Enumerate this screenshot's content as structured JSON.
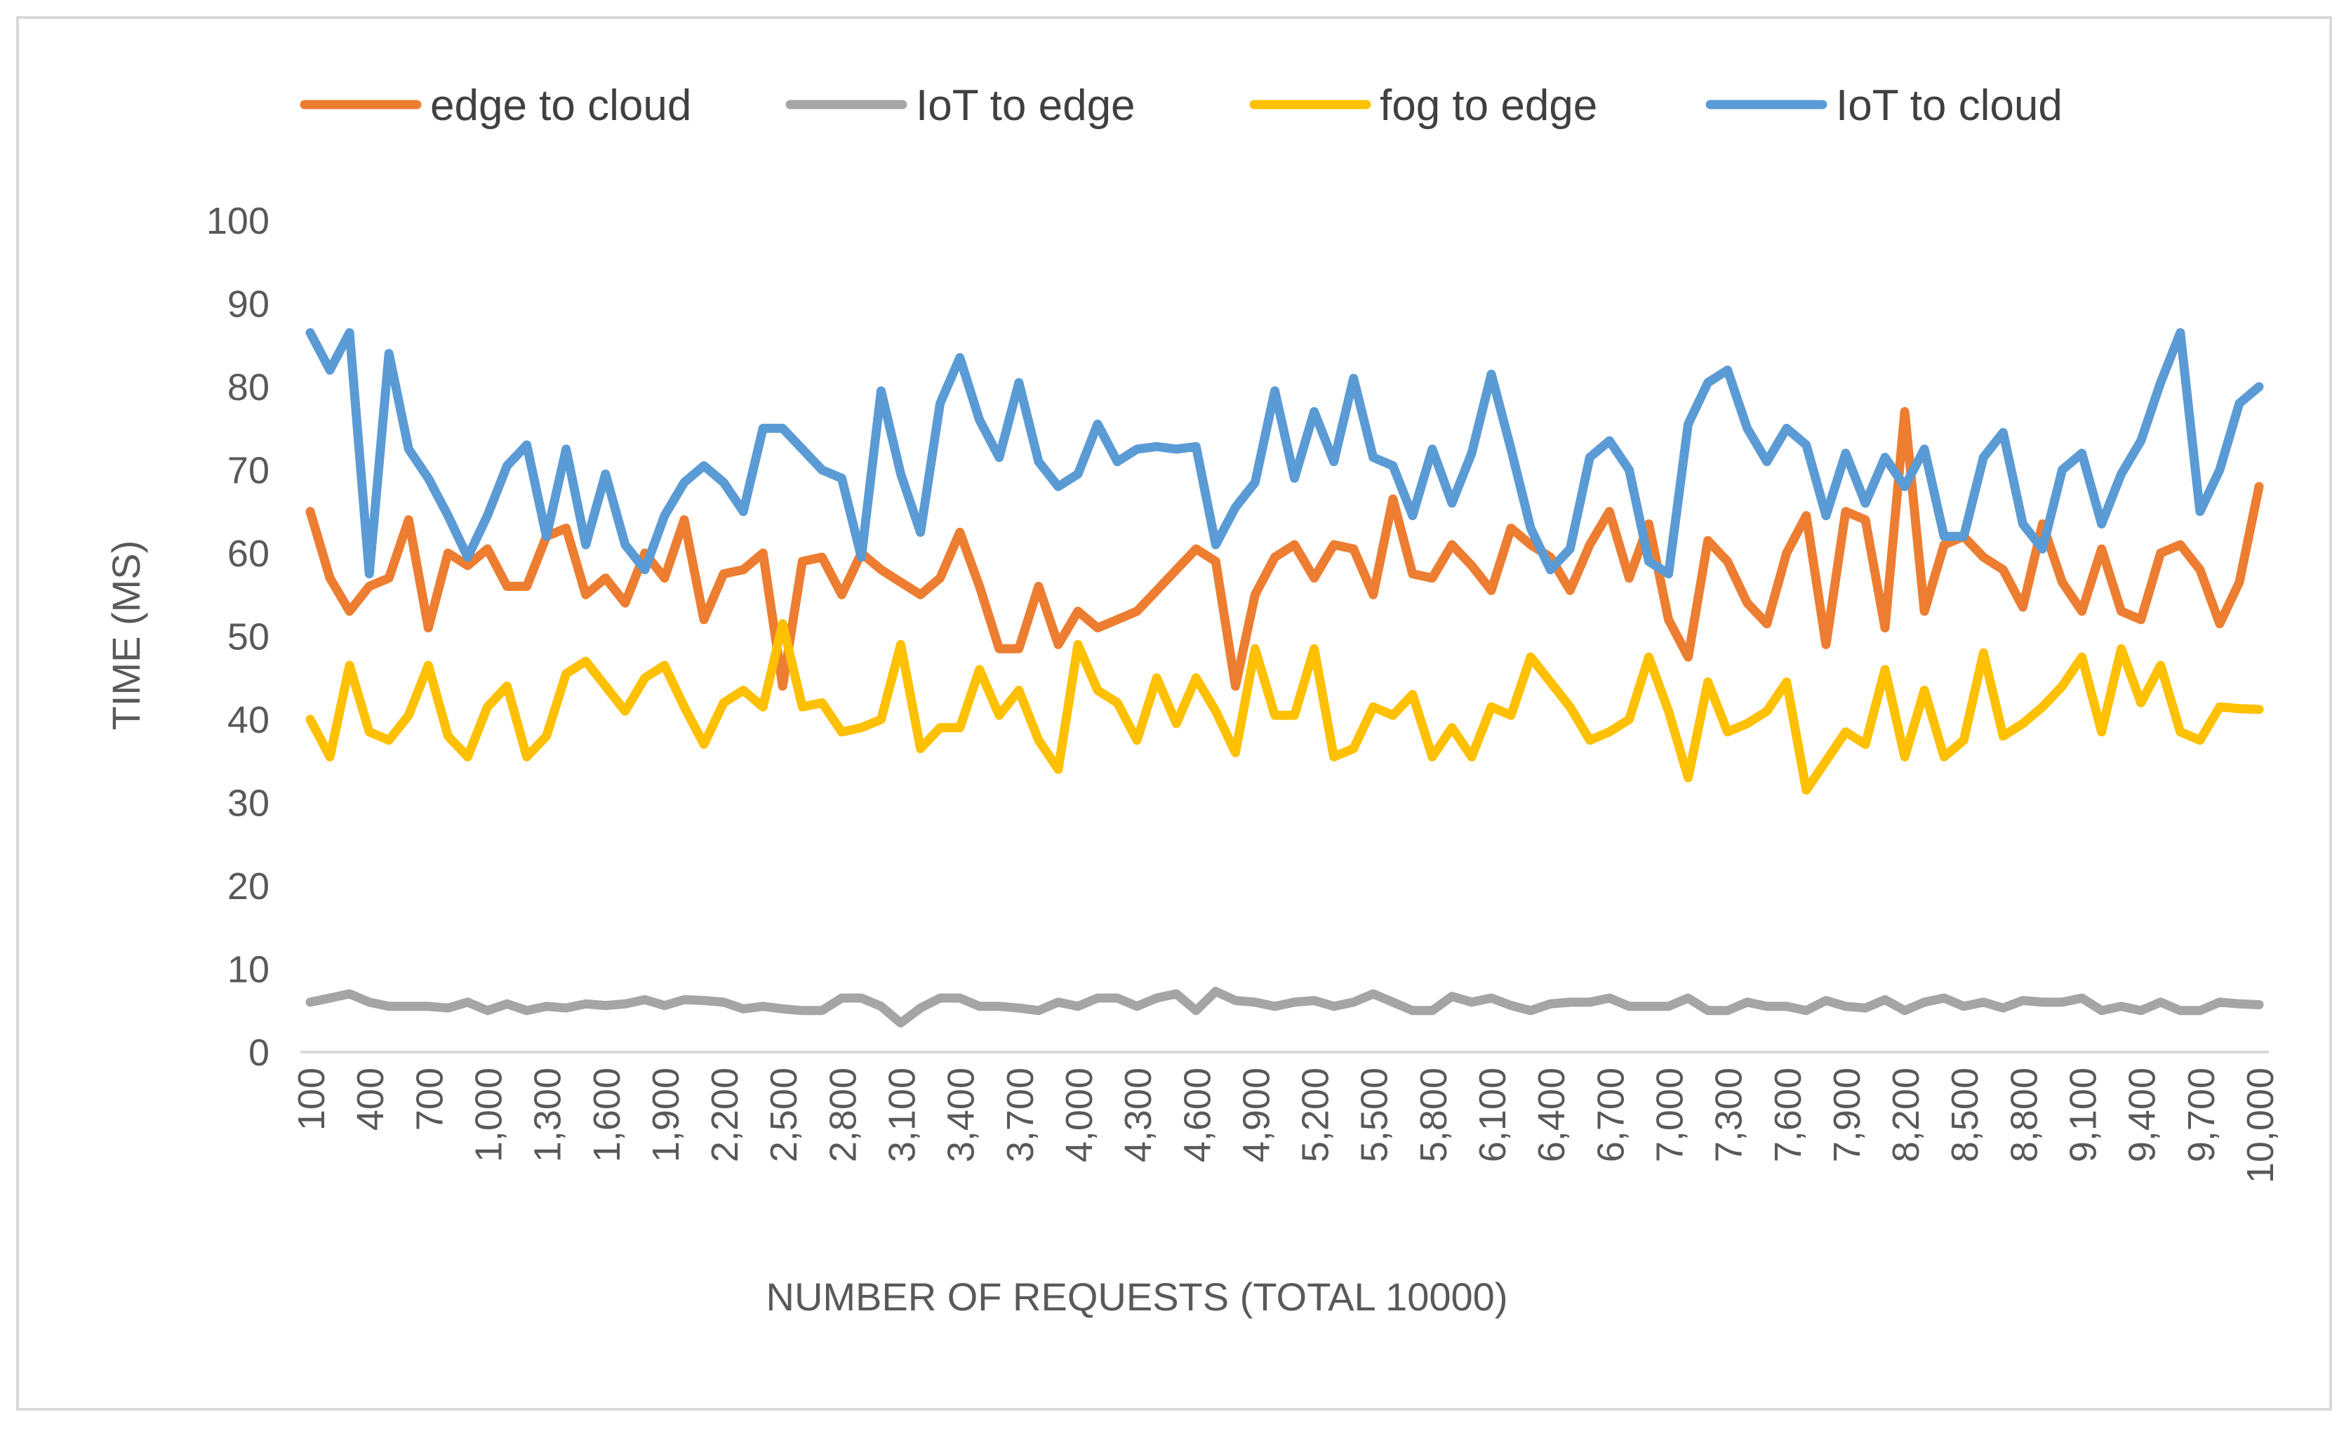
{
  "chart_data": {
    "type": "line",
    "title": "",
    "xlabel": "NUMBER OF REQUESTS (TOTAL 10000)",
    "ylabel": "TIME (MS)",
    "ylim": [
      0,
      100
    ],
    "yticks": [
      0,
      10,
      20,
      30,
      40,
      50,
      60,
      70,
      80,
      90,
      100
    ],
    "grid": false,
    "legend_position": "top",
    "x": [
      100,
      200,
      300,
      400,
      500,
      600,
      700,
      800,
      900,
      1000,
      1100,
      1200,
      1300,
      1400,
      1500,
      1600,
      1700,
      1800,
      1900,
      2000,
      2100,
      2200,
      2300,
      2400,
      2500,
      2600,
      2700,
      2800,
      2900,
      3000,
      3100,
      3200,
      3300,
      3400,
      3500,
      3600,
      3700,
      3800,
      3900,
      4000,
      4100,
      4200,
      4300,
      4400,
      4500,
      4600,
      4700,
      4800,
      4900,
      5000,
      5100,
      5200,
      5300,
      5400,
      5500,
      5600,
      5700,
      5800,
      5900,
      6000,
      6100,
      6200,
      6300,
      6400,
      6500,
      6600,
      6700,
      6800,
      6900,
      7000,
      7100,
      7200,
      7300,
      7400,
      7500,
      7600,
      7700,
      7800,
      7900,
      8000,
      8100,
      8200,
      8300,
      8400,
      8500,
      8600,
      8700,
      8800,
      8900,
      9000,
      9100,
      9200,
      9300,
      9400,
      9500,
      9600,
      9700,
      9800,
      9900,
      10000
    ],
    "x_tick_labels": [
      "100",
      "400",
      "700",
      "1,000",
      "1,300",
      "1,600",
      "1,900",
      "2,200",
      "2,500",
      "2,800",
      "3,100",
      "3,400",
      "3,700",
      "4,000",
      "4,300",
      "4,600",
      "4,900",
      "5,200",
      "5,500",
      "5,800",
      "6,100",
      "6,400",
      "6,700",
      "7,000",
      "7,300",
      "7,600",
      "7,900",
      "8,200",
      "8,500",
      "8,800",
      "9,100",
      "9,400",
      "9,700",
      "10,000"
    ],
    "series": [
      {
        "name": "edge to cloud",
        "color": "#ED7D31",
        "values": [
          65,
          57,
          53,
          56,
          57,
          64,
          51,
          60,
          58.5,
          60.5,
          56,
          56,
          62,
          63,
          55,
          57,
          54,
          60,
          57,
          64,
          52,
          57.5,
          58,
          60,
          44,
          59,
          59.5,
          55,
          60,
          58,
          56.5,
          55,
          57,
          62.5,
          56,
          48.5,
          48.5,
          56,
          49,
          53,
          51,
          52,
          53,
          55.5,
          58,
          60.5,
          59,
          44,
          55,
          59.5,
          61,
          57,
          61,
          60.5,
          55,
          66.5,
          57.5,
          57,
          61,
          58.5,
          55.5,
          63,
          61,
          59.5,
          55.5,
          61,
          65,
          57,
          63.5,
          52,
          47.5,
          61.5,
          59,
          54,
          51.5,
          60,
          64.5,
          49,
          65,
          64,
          51,
          77,
          53,
          61,
          62,
          59.5,
          58,
          53.5,
          63.5,
          56.5,
          53,
          60.5,
          53,
          52,
          60,
          61,
          58,
          51.5,
          56.5,
          68
        ]
      },
      {
        "name": "IoT to edge",
        "color": "#A5A5A5",
        "values": [
          6,
          6.5,
          7,
          6,
          5.5,
          5.5,
          5.5,
          5.3,
          6,
          5,
          5.8,
          5,
          5.5,
          5.3,
          5.8,
          5.6,
          5.8,
          6.3,
          5.6,
          6.3,
          6.2,
          6,
          5.2,
          5.5,
          5.2,
          5,
          5,
          6.5,
          6.5,
          5.5,
          3.5,
          5.3,
          6.5,
          6.5,
          5.5,
          5.5,
          5.3,
          5,
          6,
          5.5,
          6.5,
          6.5,
          5.5,
          6.5,
          7,
          5,
          7.3,
          6.2,
          6,
          5.5,
          6,
          6.2,
          5.5,
          6,
          7,
          6,
          5,
          5,
          6.7,
          6,
          6.5,
          5.6,
          5,
          5.8,
          6,
          6,
          6.5,
          5.5,
          5.5,
          5.5,
          6.5,
          5,
          5,
          6,
          5.5,
          5.5,
          5,
          6.2,
          5.5,
          5.3,
          6.3,
          5,
          6,
          6.5,
          5.5,
          6,
          5.3,
          6.2,
          6,
          6,
          6.5,
          5,
          5.5,
          5,
          6,
          5,
          5,
          6,
          5.8,
          5.7
        ]
      },
      {
        "name": "fog to edge",
        "color": "#FFC000",
        "values": [
          40,
          35.5,
          46.5,
          38.5,
          37.5,
          40.5,
          46.5,
          38,
          35.5,
          41.5,
          44,
          35.5,
          38,
          45.5,
          47,
          44,
          41,
          45,
          46.5,
          41.5,
          37,
          42,
          43.5,
          41.5,
          51.5,
          41.5,
          42,
          38.5,
          39,
          40,
          49,
          36.5,
          39,
          39,
          46,
          40.5,
          43.5,
          37.5,
          34,
          49,
          43.5,
          42,
          37.5,
          45,
          39.5,
          45,
          41,
          36,
          48.5,
          40.5,
          40.5,
          48.5,
          35.5,
          36.5,
          41.5,
          40.5,
          43,
          35.5,
          39,
          35.5,
          41.5,
          40.5,
          47.5,
          44.5,
          41.5,
          37.5,
          38.5,
          40,
          47.5,
          41,
          33,
          44.5,
          38.5,
          39.5,
          41,
          44.5,
          31.5,
          35,
          38.5,
          37,
          46,
          35.5,
          43.5,
          35.5,
          37.5,
          48,
          38,
          39.5,
          41.5,
          44,
          47.5,
          38.5,
          48.5,
          42,
          46.5,
          38.5,
          37.5,
          41.5,
          41.3,
          41.2
        ]
      },
      {
        "name": "IoT to cloud",
        "color": "#5B9BD5",
        "values": [
          86.5,
          82,
          86.5,
          57.5,
          84,
          72.5,
          69,
          64.5,
          59.5,
          64.5,
          70.5,
          73,
          62,
          72.5,
          61,
          69.5,
          61,
          58,
          64.5,
          68.5,
          70.5,
          68.5,
          65,
          75,
          75,
          72.5,
          70,
          69,
          59.5,
          79.5,
          69.5,
          62.5,
          78,
          83.5,
          76,
          71.5,
          80.5,
          71,
          68,
          69.5,
          75.5,
          71,
          72.5,
          72.8,
          72.5,
          72.8,
          61,
          65.5,
          68.5,
          79.5,
          69,
          77,
          71,
          81,
          71.5,
          70.5,
          64.5,
          72.5,
          66,
          72,
          81.5,
          72.5,
          63,
          58,
          60.5,
          71.5,
          73.5,
          70,
          59,
          57.5,
          75.5,
          80.5,
          82,
          75,
          71,
          75,
          73,
          64.5,
          72,
          66,
          71.5,
          68,
          72.5,
          62,
          62,
          71.5,
          74.5,
          63.5,
          60.5,
          70,
          72,
          63.5,
          69.5,
          73.5,
          80.5,
          86.5,
          65,
          70,
          78,
          80
        ]
      }
    ]
  }
}
